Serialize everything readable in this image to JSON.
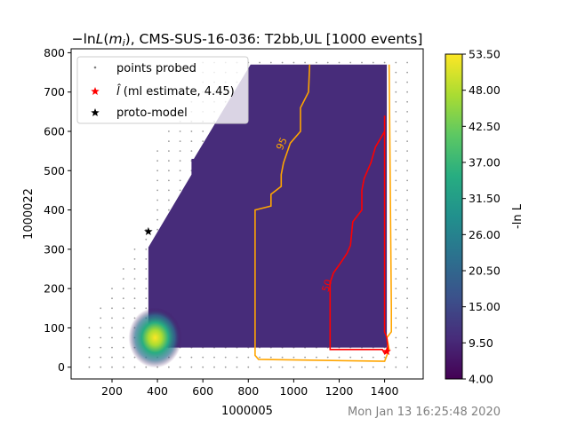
{
  "chart_data": {
    "type": "heatmap",
    "title": "−lnL(m_i), CMS-SUS-16-036: T2bb,UL [1000 events]",
    "title_parts": {
      "lhs": "−ln",
      "L": "L",
      "paren_open": "(",
      "m": "m",
      "i": "i",
      "paren_close": ")",
      "rest": ", CMS-SUS-16-036: T2bb,UL [1000 events]"
    },
    "xlabel": "1000005",
    "ylabel": "1000022",
    "xlim": [
      20,
      1570
    ],
    "ylim": [
      -30,
      810
    ],
    "x_ticks": [
      200,
      400,
      600,
      800,
      1000,
      1200,
      1400
    ],
    "y_ticks": [
      0,
      100,
      200,
      300,
      400,
      500,
      600,
      700,
      800
    ],
    "colorbar": {
      "label": "-ln L",
      "min": 4.0,
      "max": 53.5,
      "ticks": [
        "4.00",
        "9.50",
        "15.00",
        "20.50",
        "26.00",
        "31.50",
        "37.00",
        "42.50",
        "48.00",
        "53.50"
      ],
      "colors": [
        "#440154",
        "#472c7a",
        "#3b518b",
        "#2c718e",
        "#21908d",
        "#27ad81",
        "#5cc863",
        "#aadc32",
        "#fde725"
      ]
    },
    "legend": {
      "placement": "upper-left",
      "entries": [
        {
          "label": "points probed",
          "marker": "dot",
          "color": "#808080"
        },
        {
          "label_hat": "l̂",
          "label_rest": " (ml estimate, 4.45)",
          "marker": "star",
          "color": "#ff0000"
        },
        {
          "label": "proto-model",
          "marker": "star",
          "color": "#000000"
        }
      ]
    },
    "heat_region": [
      [
        360,
        50
      ],
      [
        1410,
        50
      ],
      [
        1410,
        770
      ],
      [
        810,
        770
      ],
      [
        560,
        530
      ],
      [
        550,
        530
      ],
      [
        550,
        490
      ],
      [
        360,
        305
      ]
    ],
    "hot_spot": {
      "x": 390,
      "y": 75,
      "value": 53.5
    },
    "contours": [
      {
        "level_label": "95",
        "color": "#ffa500",
        "points": [
          [
            1070,
            770
          ],
          [
            1065,
            700
          ],
          [
            1030,
            660
          ],
          [
            1030,
            600
          ],
          [
            985,
            570
          ],
          [
            955,
            520
          ],
          [
            945,
            490
          ],
          [
            945,
            460
          ],
          [
            900,
            440
          ],
          [
            900,
            410
          ],
          [
            830,
            400
          ],
          [
            830,
            30
          ],
          [
            845,
            20
          ],
          [
            1400,
            15
          ],
          [
            1420,
            45
          ],
          [
            1410,
            75
          ],
          [
            1430,
            90
          ],
          [
            1430,
            150
          ],
          [
            1420,
            770
          ]
        ]
      },
      {
        "level_label": "50",
        "color": "#ff0000",
        "points": [
          [
            1400,
            640
          ],
          [
            1400,
            600
          ],
          [
            1360,
            560
          ],
          [
            1340,
            520
          ],
          [
            1310,
            480
          ],
          [
            1300,
            450
          ],
          [
            1300,
            400
          ],
          [
            1260,
            370
          ],
          [
            1250,
            310
          ],
          [
            1235,
            290
          ],
          [
            1200,
            260
          ],
          [
            1175,
            240
          ],
          [
            1160,
            215
          ],
          [
            1160,
            45
          ],
          [
            1390,
            45
          ],
          [
            1400,
            35
          ],
          [
            1415,
            45
          ],
          [
            1410,
            75
          ],
          [
            1400,
            90
          ],
          [
            1400,
            640
          ]
        ]
      }
    ],
    "ml_estimate": {
      "x": 1410,
      "y": 40,
      "value": 4.45
    },
    "proto_model": {
      "x": 360,
      "y": 345
    },
    "probed_grid": {
      "x_start": 100,
      "x_step": 50,
      "x_end": 1500,
      "y_start": 0,
      "y_step": 25,
      "y_end": 775
    }
  },
  "timestamp": "Mon Jan 13 16:25:48 2020"
}
